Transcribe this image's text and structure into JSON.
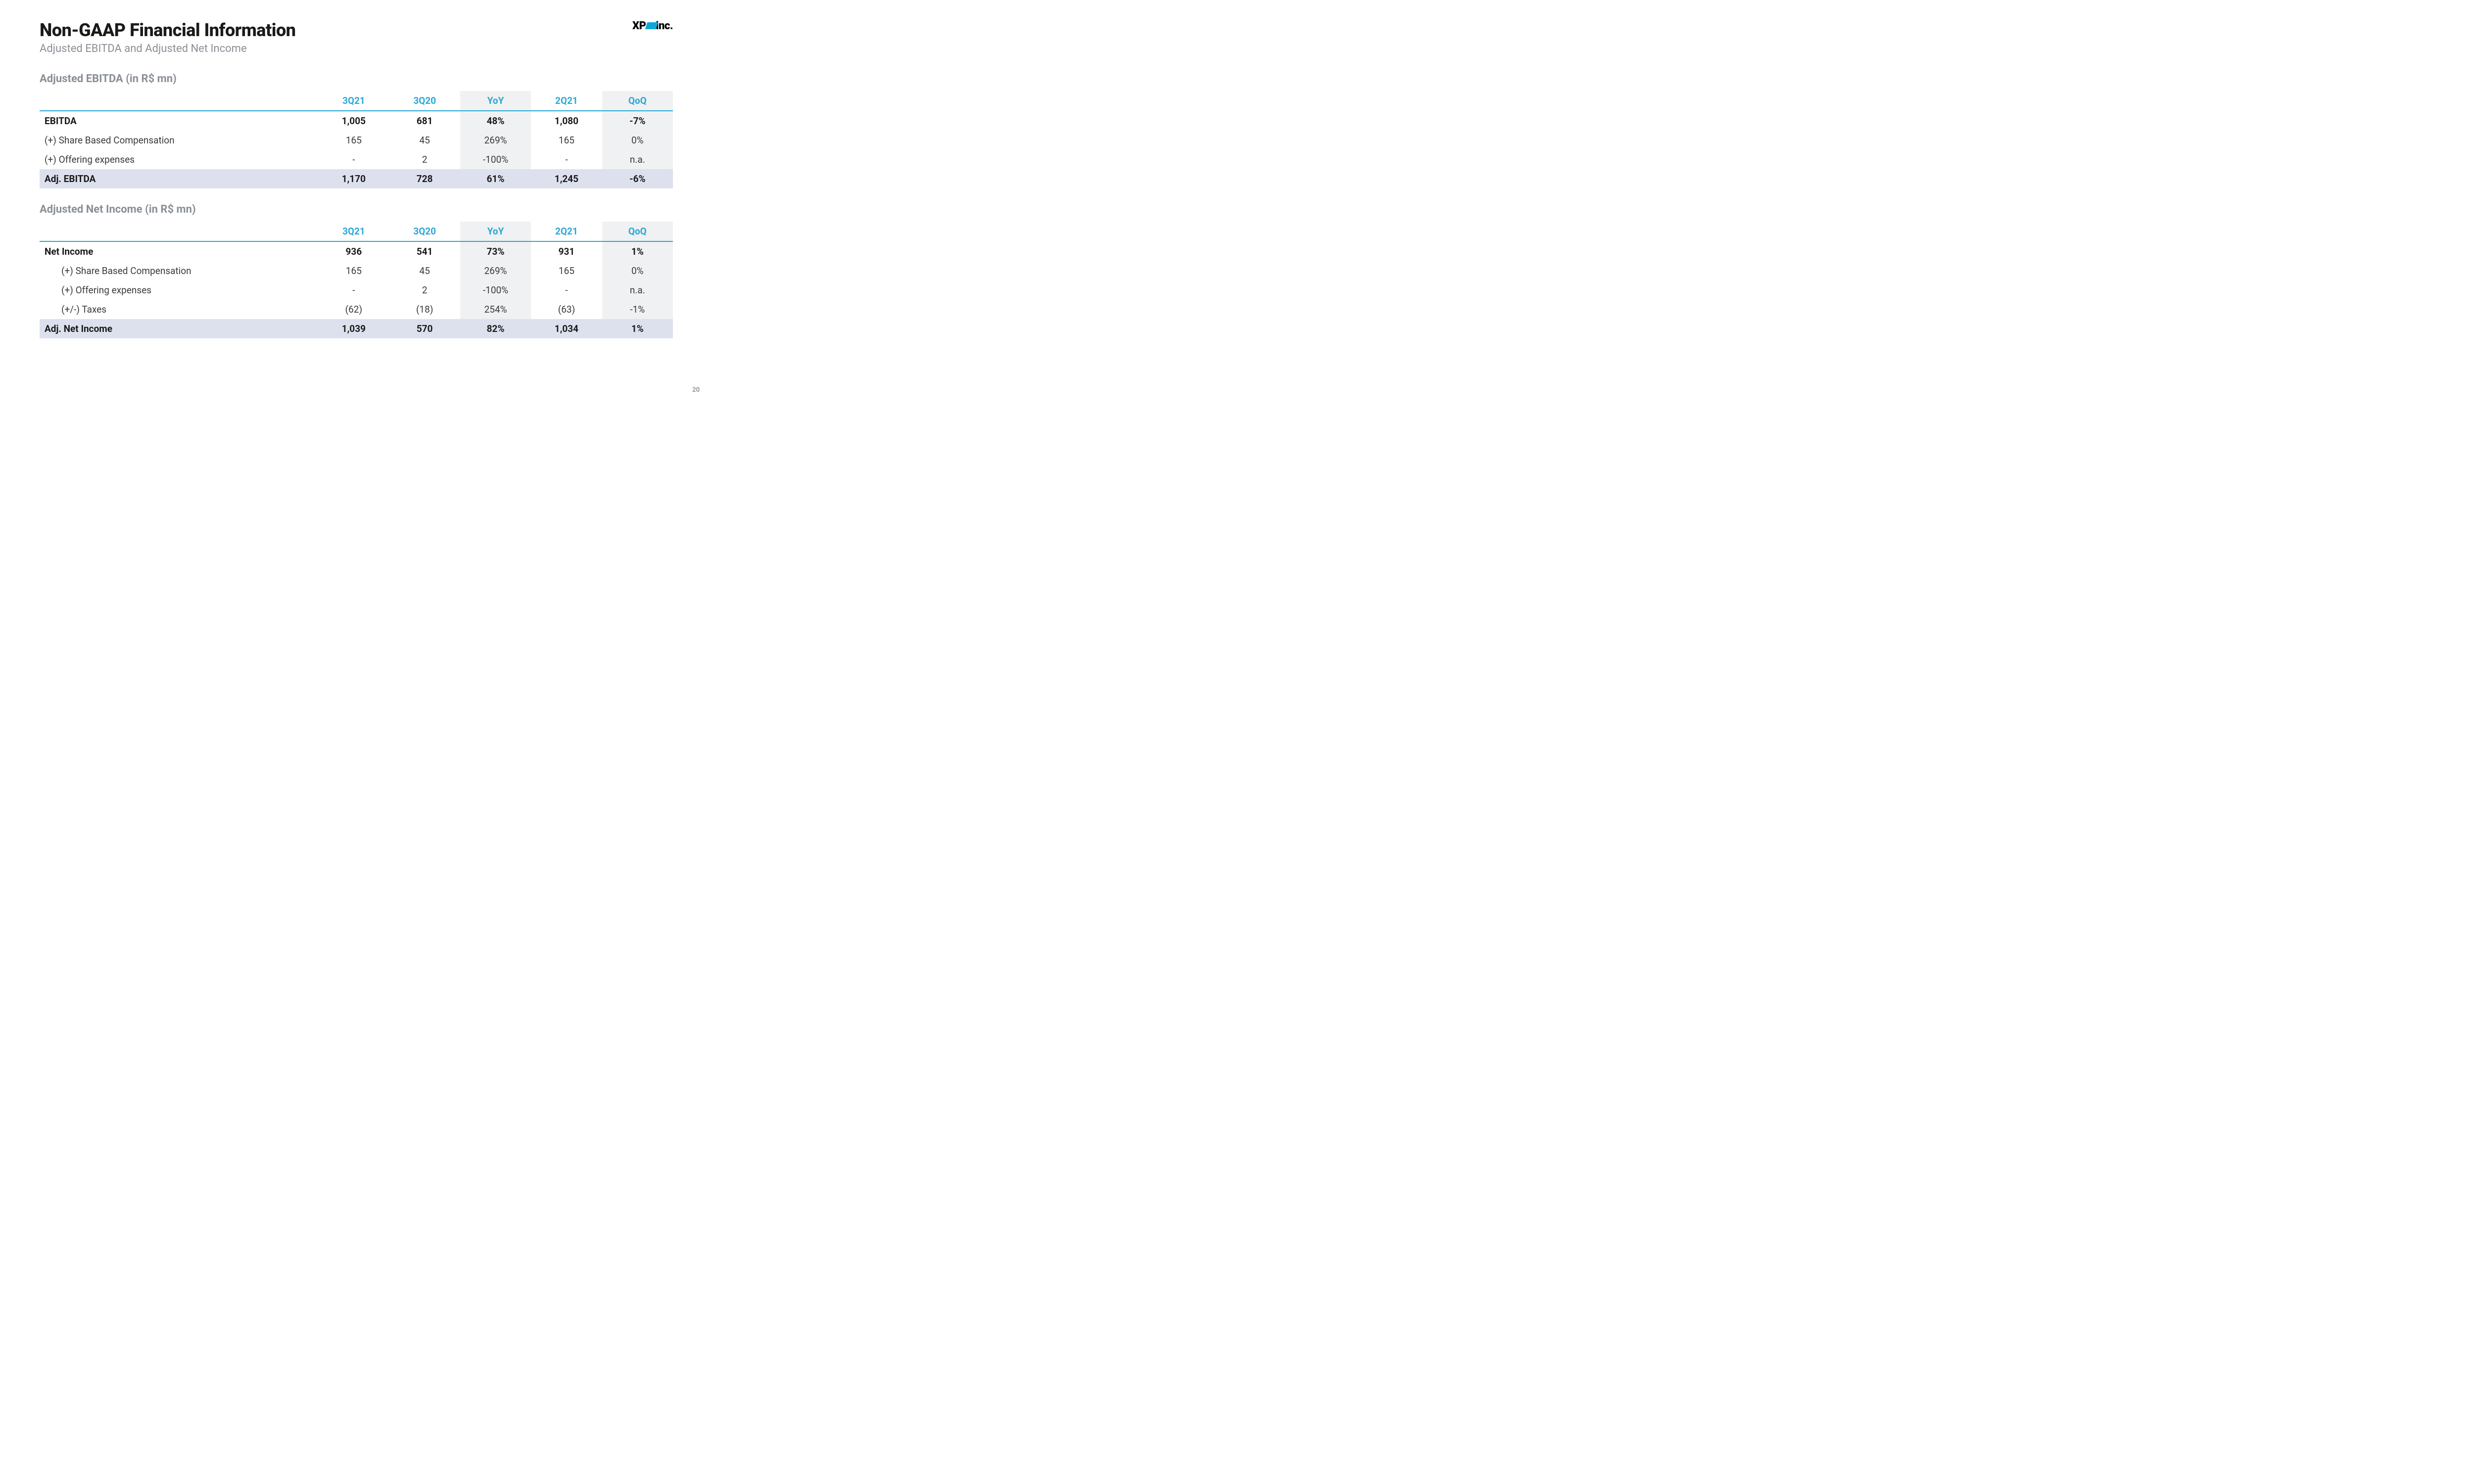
{
  "header": {
    "title": "Non-GAAP Financial Information",
    "subtitle": "Adjusted EBITDA and Adjusted Net Income"
  },
  "logo": {
    "text_a": "XP",
    "text_b": "inc."
  },
  "page_number": "20",
  "colors": {
    "accent": "#29a8d6",
    "logo_square": "#0fa6da",
    "text_muted": "#8a8f96",
    "shade_col": "#f0f1f2",
    "total_row": "#dde1ee",
    "background": "#ffffff"
  },
  "typography": {
    "title_size_pt": 36,
    "section_size_pt": 22,
    "body_size_pt": 19
  },
  "tables": {
    "columns": [
      {
        "key": "label",
        "header": "",
        "width_pct": 44,
        "shaded": false
      },
      {
        "key": "q3_21",
        "header": "3Q21",
        "width_pct": 11.2,
        "shaded": false
      },
      {
        "key": "q3_20",
        "header": "3Q20",
        "width_pct": 11.2,
        "shaded": false
      },
      {
        "key": "yoy",
        "header": "YoY",
        "width_pct": 11.2,
        "shaded": true
      },
      {
        "key": "q2_21",
        "header": "2Q21",
        "width_pct": 11.2,
        "shaded": false
      },
      {
        "key": "qoq",
        "header": "QoQ",
        "width_pct": 11.2,
        "shaded": true
      }
    ],
    "ebitda": {
      "title": "Adjusted EBITDA (in R$ mn)",
      "rows": [
        {
          "label": "EBITDA",
          "q3_21": "1,005",
          "q3_20": "681",
          "yoy": "48%",
          "q2_21": "1,080",
          "qoq": "-7%",
          "bold": true,
          "indent": false,
          "total": false
        },
        {
          "label": "(+) Share Based Compensation",
          "q3_21": "165",
          "q3_20": "45",
          "yoy": "269%",
          "q2_21": "165",
          "qoq": "0%",
          "bold": false,
          "indent": false,
          "total": false
        },
        {
          "label": "(+) Offering expenses",
          "q3_21": "-",
          "q3_20": "2",
          "yoy": "-100%",
          "q2_21": "-",
          "qoq": "n.a.",
          "bold": false,
          "indent": false,
          "total": false
        },
        {
          "label": "Adj. EBITDA",
          "q3_21": "1,170",
          "q3_20": "728",
          "yoy": "61%",
          "q2_21": "1,245",
          "qoq": "-6%",
          "bold": true,
          "indent": false,
          "total": true
        }
      ]
    },
    "netincome": {
      "title": "Adjusted Net Income (in R$ mn)",
      "rows": [
        {
          "label": "Net Income",
          "q3_21": "936",
          "q3_20": "541",
          "yoy": "73%",
          "q2_21": "931",
          "qoq": "1%",
          "bold": true,
          "indent": false,
          "total": false
        },
        {
          "label": "(+) Share Based Compensation",
          "q3_21": "165",
          "q3_20": "45",
          "yoy": "269%",
          "q2_21": "165",
          "qoq": "0%",
          "bold": false,
          "indent": true,
          "total": false
        },
        {
          "label": "(+) Offering expenses",
          "q3_21": "-",
          "q3_20": "2",
          "yoy": "-100%",
          "q2_21": "-",
          "qoq": "n.a.",
          "bold": false,
          "indent": true,
          "total": false
        },
        {
          "label": "(+/-) Taxes",
          "q3_21": "(62)",
          "q3_20": "(18)",
          "yoy": "254%",
          "q2_21": "(63)",
          "qoq": "-1%",
          "bold": false,
          "indent": true,
          "total": false
        },
        {
          "label": "Adj. Net Income",
          "q3_21": "1,039",
          "q3_20": "570",
          "yoy": "82%",
          "q2_21": "1,034",
          "qoq": "1%",
          "bold": true,
          "indent": false,
          "total": true
        }
      ]
    }
  }
}
